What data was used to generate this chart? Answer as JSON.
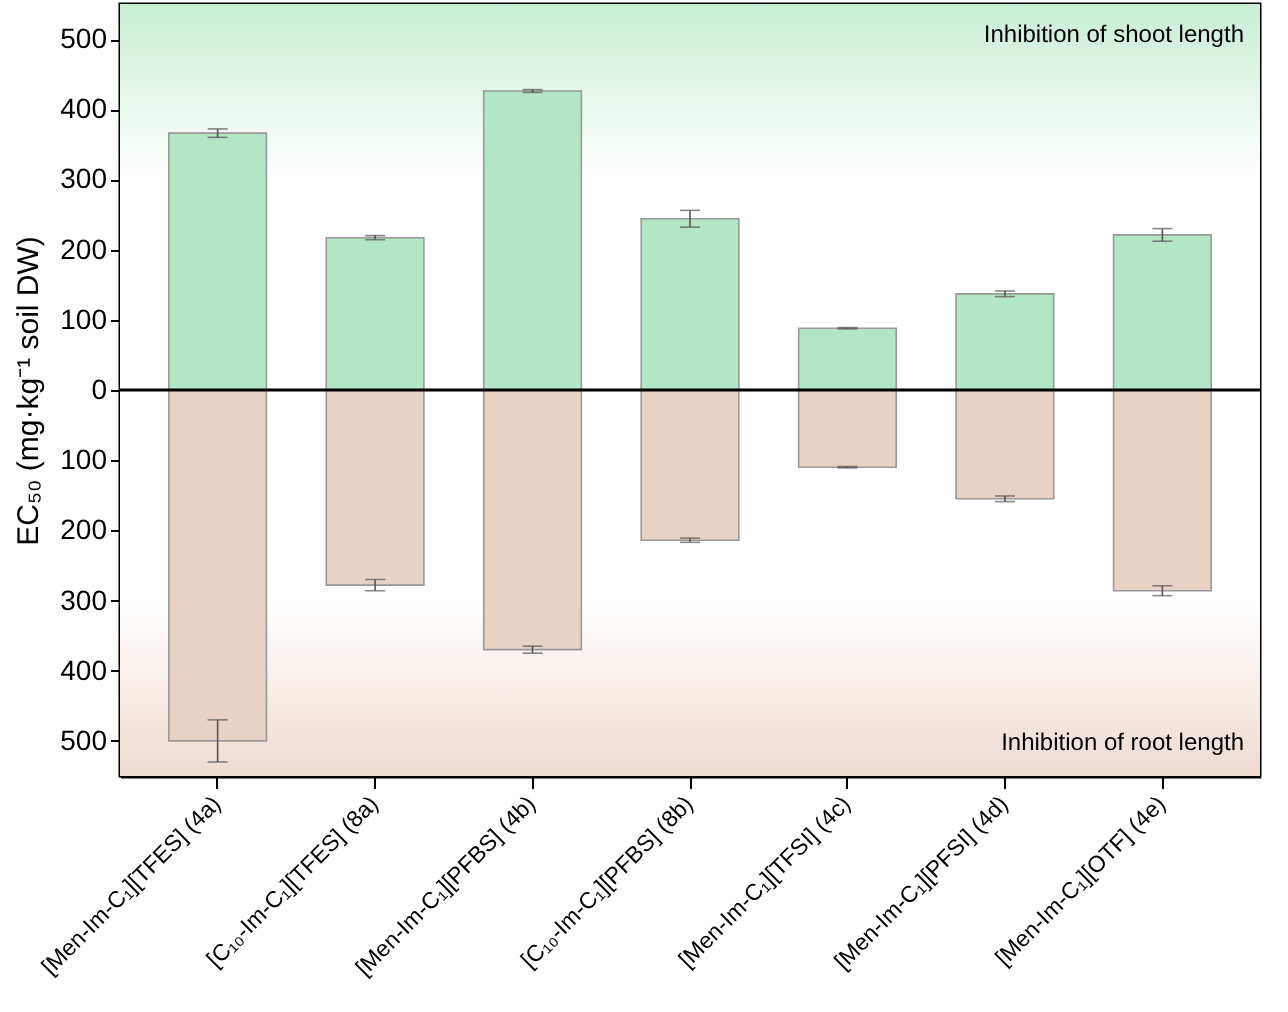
{
  "chart_data": {
    "type": "bar",
    "ylabel": "EC₅₀ (mg·kg⁻¹ soil DW)",
    "categories": [
      "[Men-Im-C₁][TFES] (4a)",
      "[C₁₀-Im-C₁][TFES] (8a)",
      "[Men-Im-C₁][PFBS] (4b)",
      "[C₁₀-Im-C₁][PFBS] (8b)",
      "[Men-Im-C₁][TFSI] (4c)",
      "[Men-Im-C₁][PFSI] (4d)",
      "[Men-Im-C₁][OTF] (4e)"
    ],
    "series": [
      {
        "color": "#b3e6c4",
        "values": [
          366,
          217,
          426,
          244,
          88,
          137,
          221
        ],
        "errors": [
          6,
          3,
          2,
          12,
          1,
          4,
          9
        ]
      },
      {
        "color": "#e8d2c6",
        "values": [
          -500,
          -278,
          -370,
          -214,
          -110,
          -155,
          -286
        ],
        "errors": [
          30,
          8,
          5,
          3,
          1,
          4,
          7
        ]
      }
    ],
    "ylim": [
      -550,
      550
    ],
    "yticks": [
      {
        "value": -500,
        "label": "500"
      },
      {
        "value": -400,
        "label": "400"
      },
      {
        "value": -300,
        "label": "300"
      },
      {
        "value": -200,
        "label": "200"
      },
      {
        "value": -100,
        "label": "100"
      },
      0,
      100,
      200,
      300,
      400,
      500
    ],
    "ref_lines": [
      {
        "axis": "y",
        "value": 0,
        "color": "#000000"
      }
    ],
    "bands": [
      {
        "axis": "y",
        "from": 0,
        "to": 550,
        "label": "Inhibition of shoot length",
        "color": "#c8eed4"
      },
      {
        "axis": "y",
        "from": 0,
        "to": -550,
        "label": "Inhibition of root length",
        "color": "#eedbd0"
      }
    ],
    "stacked": true,
    "grid": false
  }
}
